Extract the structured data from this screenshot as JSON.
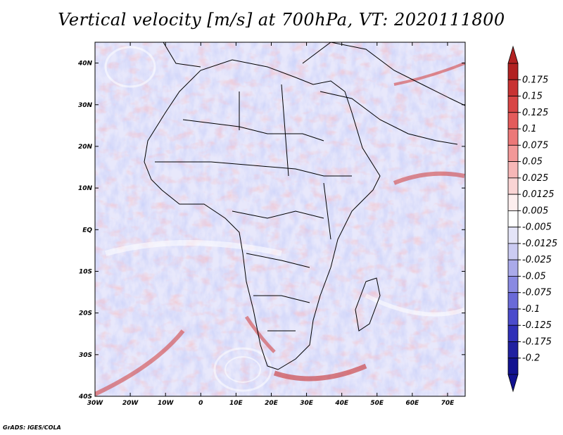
{
  "title": "Vertical velocity [m/s] at 700hPa, VT: 2020111800",
  "map": {
    "lon_labels": [
      "30W",
      "20W",
      "10W",
      "0",
      "10E",
      "20E",
      "30E",
      "40E",
      "50E",
      "60E",
      "70E"
    ],
    "lat_labels": [
      "40N",
      "30N",
      "20N",
      "10N",
      "EQ",
      "10S",
      "20S",
      "30S",
      "40S"
    ],
    "lon_range": [
      -30,
      75
    ],
    "lat_range": [
      -40,
      45
    ]
  },
  "colorbar": {
    "labels": [
      "0.175",
      "0.15",
      "0.125",
      "0.1",
      "0.075",
      "0.05",
      "0.025",
      "0.0125",
      "0.005",
      "-0.005",
      "-0.0125",
      "-0.025",
      "-0.05",
      "-0.075",
      "-0.1",
      "-0.125",
      "-0.175",
      "-0.2"
    ],
    "colors": [
      "#b22222",
      "#c83232",
      "#d84545",
      "#e45b5b",
      "#ec7878",
      "#f29898",
      "#f7b7b7",
      "#fad4d4",
      "#fdeeee",
      "#ffffff",
      "#e4e4f7",
      "#cbcbf2",
      "#aaaaea",
      "#8a8ae2",
      "#6a6ad8",
      "#4b4bcc",
      "#3030b8",
      "#2020a0",
      "#121290"
    ]
  },
  "credit": "GrADS: IGES/COLA"
}
